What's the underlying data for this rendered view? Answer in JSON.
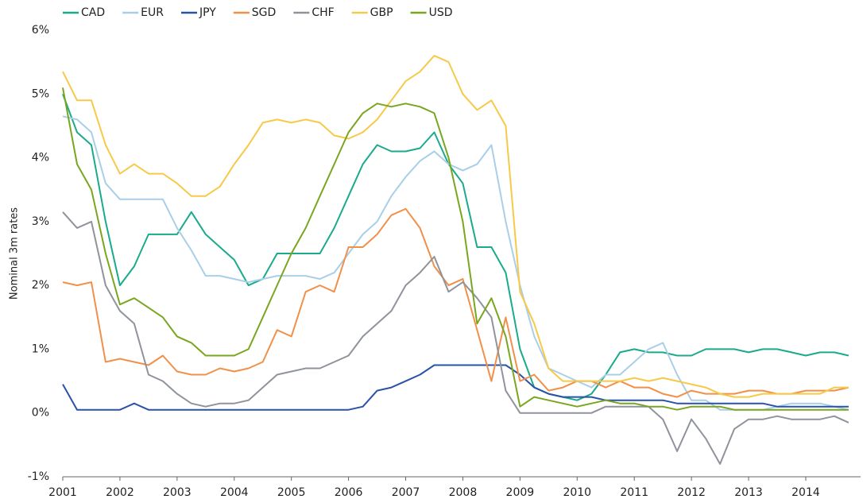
{
  "chart_data": {
    "type": "line",
    "y_label": "Nominal 3m rates",
    "x": [
      2001,
      2001.25,
      2001.5,
      2001.75,
      2002,
      2002.25,
      2002.5,
      2002.75,
      2003,
      2003.25,
      2003.5,
      2003.75,
      2004,
      2004.25,
      2004.5,
      2004.75,
      2005,
      2005.25,
      2005.5,
      2005.75,
      2006,
      2006.25,
      2006.5,
      2006.75,
      2007,
      2007.25,
      2007.5,
      2007.75,
      2008,
      2008.25,
      2008.5,
      2008.75,
      2009,
      2009.25,
      2009.5,
      2009.75,
      2010,
      2010.25,
      2010.5,
      2010.75,
      2011,
      2011.25,
      2011.5,
      2011.75,
      2012,
      2012.25,
      2012.5,
      2012.75,
      2013,
      2013.25,
      2013.5,
      2013.75,
      2014,
      2014.25,
      2014.5,
      2014.75
    ],
    "xlim": [
      2001,
      2014.96
    ],
    "xticks": [
      2001,
      2002,
      2003,
      2004,
      2005,
      2006,
      2007,
      2008,
      2009,
      2010,
      2011,
      2012,
      2013,
      2014
    ],
    "ylim": [
      -1,
      6
    ],
    "yticks": [
      {
        "value": -1,
        "label": "-1%"
      },
      {
        "value": 0,
        "label": "0%"
      },
      {
        "value": 1,
        "label": "1%"
      },
      {
        "value": 2,
        "label": "2%"
      },
      {
        "value": 3,
        "label": "3%"
      },
      {
        "value": 4,
        "label": "4%"
      },
      {
        "value": 5,
        "label": "5%"
      },
      {
        "value": 6,
        "label": "6%"
      }
    ],
    "legend": "top-left",
    "series": [
      {
        "name": "CAD",
        "color": "#1aaa8c",
        "values": [
          5.0,
          4.4,
          4.2,
          3.0,
          2.0,
          2.3,
          2.8,
          2.8,
          2.8,
          3.15,
          2.8,
          2.6,
          2.4,
          2.0,
          2.1,
          2.5,
          2.5,
          2.5,
          2.5,
          2.9,
          3.4,
          3.9,
          4.2,
          4.1,
          4.1,
          4.15,
          4.4,
          3.9,
          3.6,
          2.6,
          2.6,
          2.2,
          1.0,
          0.4,
          0.3,
          0.25,
          0.2,
          0.3,
          0.6,
          0.95,
          1.0,
          0.95,
          0.95,
          0.9,
          0.9,
          1.0,
          1.0,
          1.0,
          0.95,
          1.0,
          1.0,
          0.95,
          0.9,
          0.95,
          0.95,
          0.9
        ]
      },
      {
        "name": "EUR",
        "color": "#a9cfe8",
        "values": [
          4.65,
          4.6,
          4.4,
          3.6,
          3.35,
          3.35,
          3.35,
          3.35,
          2.9,
          2.55,
          2.15,
          2.15,
          2.1,
          2.05,
          2.1,
          2.15,
          2.15,
          2.15,
          2.1,
          2.2,
          2.5,
          2.8,
          3.0,
          3.4,
          3.7,
          3.95,
          4.1,
          3.9,
          3.8,
          3.9,
          4.2,
          3.0,
          2.0,
          1.2,
          0.7,
          0.6,
          0.5,
          0.4,
          0.6,
          0.6,
          0.8,
          1.0,
          1.1,
          0.6,
          0.2,
          0.2,
          0.05,
          0.05,
          0.05,
          0.05,
          0.1,
          0.15,
          0.15,
          0.15,
          0.1,
          0.05
        ]
      },
      {
        "name": "JPY",
        "color": "#2a52a8",
        "values": [
          0.45,
          0.05,
          0.05,
          0.05,
          0.05,
          0.15,
          0.05,
          0.05,
          0.05,
          0.05,
          0.05,
          0.05,
          0.05,
          0.05,
          0.05,
          0.05,
          0.05,
          0.05,
          0.05,
          0.05,
          0.05,
          0.1,
          0.35,
          0.4,
          0.5,
          0.6,
          0.75,
          0.75,
          0.75,
          0.75,
          0.75,
          0.75,
          0.6,
          0.4,
          0.3,
          0.25,
          0.25,
          0.25,
          0.2,
          0.2,
          0.2,
          0.2,
          0.2,
          0.15,
          0.15,
          0.15,
          0.15,
          0.15,
          0.15,
          0.15,
          0.1,
          0.1,
          0.1,
          0.1,
          0.1,
          0.1
        ]
      },
      {
        "name": "SGD",
        "color": "#f0904a",
        "values": [
          2.05,
          2.0,
          2.05,
          0.8,
          0.85,
          0.8,
          0.75,
          0.9,
          0.65,
          0.6,
          0.6,
          0.7,
          0.65,
          0.7,
          0.8,
          1.3,
          1.2,
          1.9,
          2.0,
          1.9,
          2.6,
          2.6,
          2.8,
          3.1,
          3.2,
          2.9,
          2.3,
          2.0,
          2.1,
          1.3,
          0.5,
          1.5,
          0.5,
          0.6,
          0.35,
          0.4,
          0.5,
          0.5,
          0.4,
          0.5,
          0.4,
          0.4,
          0.3,
          0.25,
          0.35,
          0.3,
          0.3,
          0.3,
          0.35,
          0.35,
          0.3,
          0.3,
          0.35,
          0.35,
          0.35,
          0.4
        ]
      },
      {
        "name": "CHF",
        "color": "#8f939b",
        "values": [
          3.15,
          2.9,
          3.0,
          2.0,
          1.6,
          1.4,
          0.6,
          0.5,
          0.3,
          0.15,
          0.1,
          0.15,
          0.15,
          0.2,
          0.4,
          0.6,
          0.65,
          0.7,
          0.7,
          0.8,
          0.9,
          1.2,
          1.4,
          1.6,
          2.0,
          2.2,
          2.45,
          1.9,
          2.05,
          1.8,
          1.5,
          0.35,
          0.0,
          0.0,
          0.0,
          0.0,
          0.0,
          0.0,
          0.1,
          0.1,
          0.1,
          0.1,
          -0.1,
          -0.6,
          -0.1,
          -0.4,
          -0.8,
          -0.25,
          -0.1,
          -0.1,
          -0.05,
          -0.1,
          -0.1,
          -0.1,
          -0.05,
          -0.15
        ]
      },
      {
        "name": "GBP",
        "color": "#f7c948",
        "values": [
          5.35,
          4.9,
          4.9,
          4.2,
          3.75,
          3.9,
          3.75,
          3.75,
          3.6,
          3.4,
          3.4,
          3.55,
          3.9,
          4.2,
          4.55,
          4.6,
          4.55,
          4.6,
          4.55,
          4.35,
          4.3,
          4.4,
          4.6,
          4.9,
          5.2,
          5.35,
          5.6,
          5.5,
          5.0,
          4.75,
          4.9,
          4.5,
          1.9,
          1.4,
          0.7,
          0.5,
          0.5,
          0.5,
          0.5,
          0.5,
          0.55,
          0.5,
          0.55,
          0.5,
          0.45,
          0.4,
          0.3,
          0.25,
          0.25,
          0.3,
          0.3,
          0.3,
          0.3,
          0.3,
          0.4,
          0.4
        ]
      },
      {
        "name": "USD",
        "color": "#7aa61f",
        "values": [
          5.1,
          3.9,
          3.5,
          2.5,
          1.7,
          1.8,
          1.65,
          1.5,
          1.2,
          1.1,
          0.9,
          0.9,
          0.9,
          1.0,
          1.5,
          2.0,
          2.5,
          2.9,
          3.4,
          3.9,
          4.4,
          4.7,
          4.85,
          4.8,
          4.85,
          4.8,
          4.7,
          4.0,
          3.0,
          1.4,
          1.8,
          1.2,
          0.1,
          0.25,
          0.2,
          0.15,
          0.1,
          0.15,
          0.2,
          0.15,
          0.15,
          0.1,
          0.1,
          0.05,
          0.1,
          0.1,
          0.1,
          0.05,
          0.05,
          0.05,
          0.05,
          0.05,
          0.05,
          0.05,
          0.05,
          0.05
        ]
      }
    ]
  }
}
